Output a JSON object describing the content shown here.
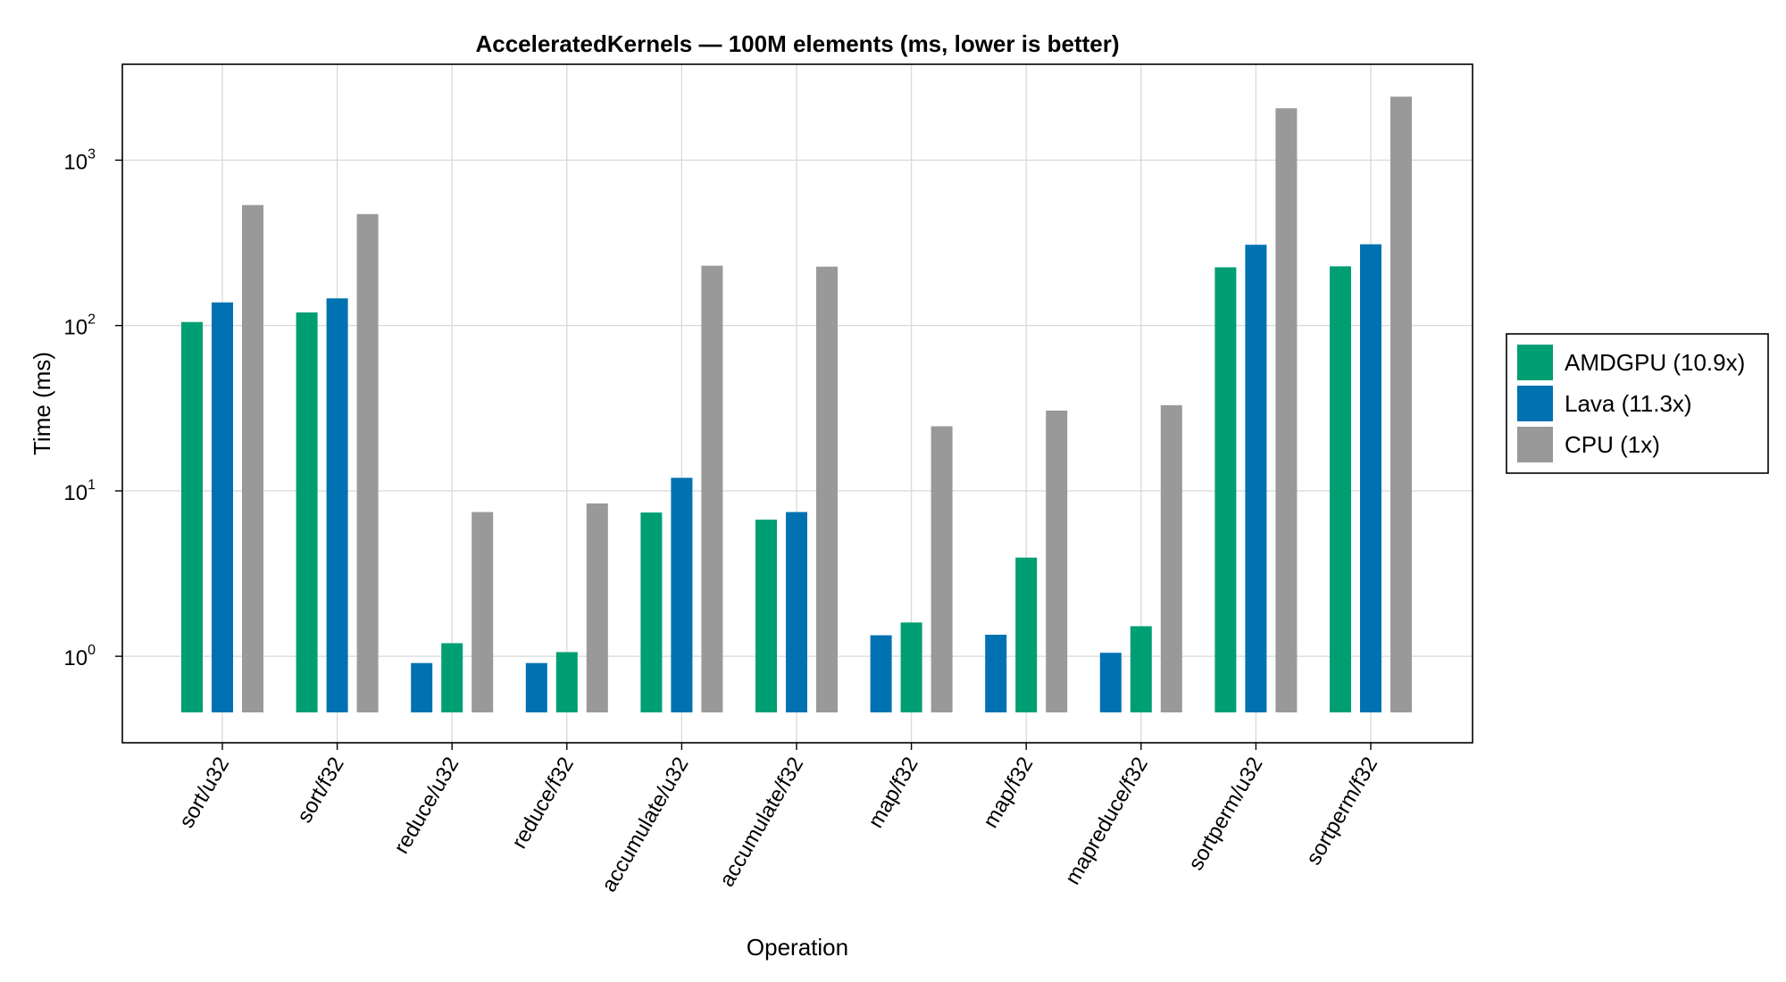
{
  "chart_data": {
    "type": "bar",
    "title": "AcceleratedKernels — 100M elements (ms, lower is better)",
    "xlabel": "Operation",
    "ylabel": "Time (ms)",
    "yscale": "log10",
    "ylim": [
      0.3,
      3800
    ],
    "yticks": [
      {
        "value": 1,
        "base": "10",
        "exp": "0"
      },
      {
        "value": 10,
        "base": "10",
        "exp": "1"
      },
      {
        "value": 100,
        "base": "10",
        "exp": "2"
      },
      {
        "value": 1000,
        "base": "10",
        "exp": "3"
      }
    ],
    "grid": true,
    "legend_position": "right",
    "categories": [
      "sort/u32",
      "sort/f32",
      "reduce/u32",
      "reduce/f32",
      "accumulate/u32",
      "accumulate/f32",
      "map/f32",
      "map/f32",
      "mapreduce/f32",
      "sortperm/u32",
      "sortperm/f32"
    ],
    "series": [
      {
        "name": "AMDGPU (10.9x)",
        "color": "#009E73",
        "values": [
          105,
          120,
          1.2,
          1.06,
          7.4,
          6.7,
          1.6,
          3.95,
          1.52,
          225,
          228
        ]
      },
      {
        "name": "Lava (11.3x)",
        "color": "#0072B2",
        "values": [
          138,
          146,
          0.91,
          0.91,
          12.0,
          7.45,
          1.34,
          1.35,
          1.05,
          308,
          310
        ]
      },
      {
        "name": "CPU (1x)",
        "color": "#999999",
        "values": [
          535,
          472,
          7.45,
          8.4,
          230,
          227,
          24.6,
          30.6,
          33.0,
          2060,
          2420
        ]
      }
    ],
    "bar_order_per_category": [
      [
        "AMDGPU (10.9x)",
        "Lava (11.3x)",
        "CPU (1x)"
      ],
      [
        "AMDGPU (10.9x)",
        "Lava (11.3x)",
        "CPU (1x)"
      ],
      [
        "Lava (11.3x)",
        "AMDGPU (10.9x)",
        "CPU (1x)"
      ],
      [
        "Lava (11.3x)",
        "AMDGPU (10.9x)",
        "CPU (1x)"
      ],
      [
        "AMDGPU (10.9x)",
        "Lava (11.3x)",
        "CPU (1x)"
      ],
      [
        "AMDGPU (10.9x)",
        "Lava (11.3x)",
        "CPU (1x)"
      ],
      [
        "Lava (11.3x)",
        "AMDGPU (10.9x)",
        "CPU (1x)"
      ],
      [
        "Lava (11.3x)",
        "AMDGPU (10.9x)",
        "CPU (1x)"
      ],
      [
        "Lava (11.3x)",
        "AMDGPU (10.9x)",
        "CPU (1x)"
      ],
      [
        "AMDGPU (10.9x)",
        "Lava (11.3x)",
        "CPU (1x)"
      ],
      [
        "AMDGPU (10.9x)",
        "Lava (11.3x)",
        "CPU (1x)"
      ]
    ]
  }
}
